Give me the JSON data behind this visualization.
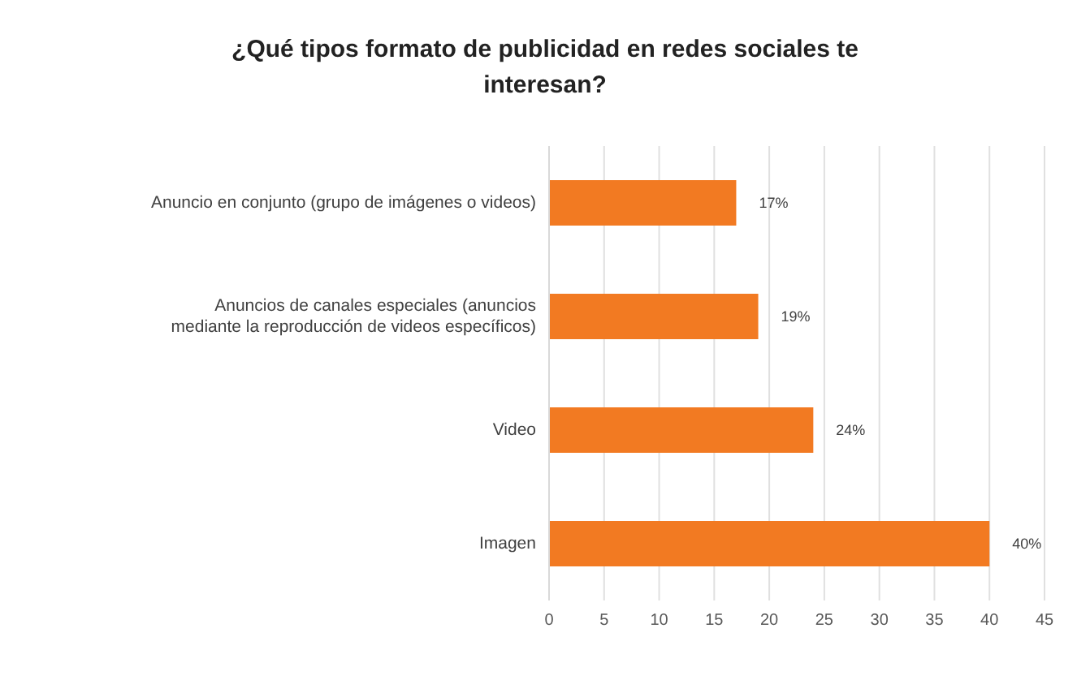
{
  "chart_data": {
    "type": "bar",
    "orientation": "horizontal",
    "title": "¿Qué tipos formato de publicidad en redes sociales te interesan?",
    "categories": [
      "Anuncio en conjunto (grupo de imágenes o videos)",
      "Anuncios de canales especiales (anuncios mediante la reproducción de videos específicos)",
      "Video",
      "Imagen"
    ],
    "values": [
      17,
      19,
      24,
      40
    ],
    "color": "#f27a22",
    "value_labels": [
      "17%",
      "19%",
      "24%",
      "40%"
    ],
    "xlim": [
      0,
      45
    ],
    "xticks": [
      0,
      5,
      10,
      15,
      20,
      25,
      30,
      35,
      40,
      45
    ],
    "grid": "x"
  }
}
